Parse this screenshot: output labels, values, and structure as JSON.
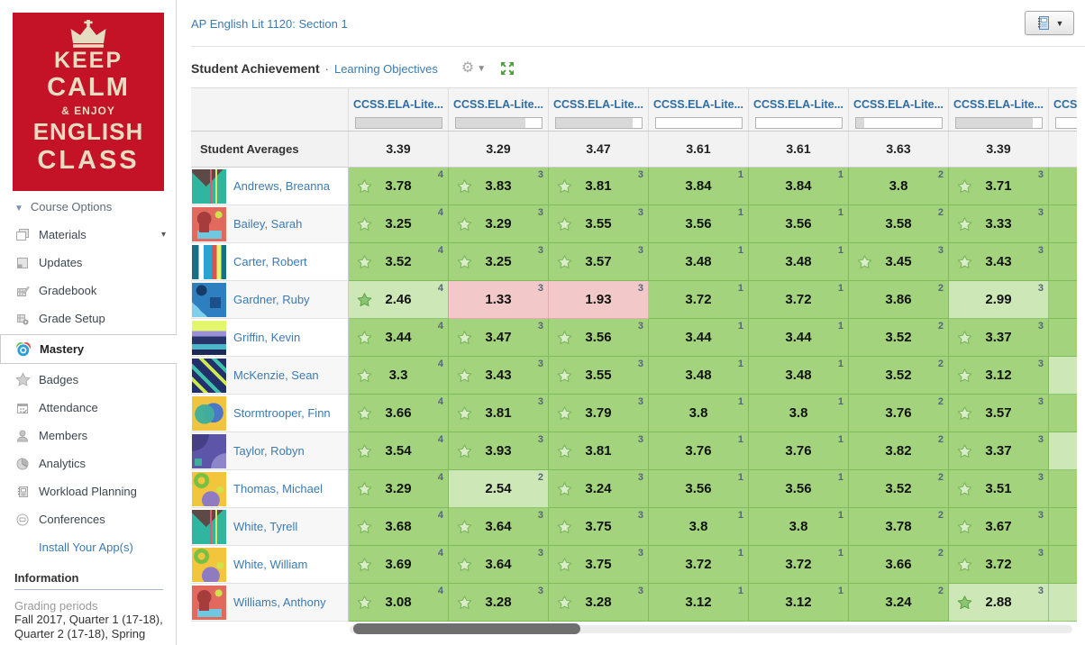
{
  "header": {
    "course_title": "AP English Lit 1120: Section 1",
    "section_title": "Student Achievement",
    "separator": "·",
    "learning_objectives_label": "Learning Objectives"
  },
  "sidebar": {
    "poster_lines": [
      "KEEP",
      "CALM",
      "& ENJOY",
      "ENGLISH",
      "CLASS"
    ],
    "course_options_label": "Course Options",
    "items": [
      {
        "label": "Materials",
        "icon": "materials-icon",
        "caret": true
      },
      {
        "label": "Updates",
        "icon": "updates-icon"
      },
      {
        "label": "Gradebook",
        "icon": "gradebook-icon"
      },
      {
        "label": "Grade Setup",
        "icon": "grade-setup-icon"
      },
      {
        "label": "Mastery",
        "icon": "mastery-icon",
        "active": true
      },
      {
        "label": "Badges",
        "icon": "badges-icon"
      },
      {
        "label": "Attendance",
        "icon": "attendance-icon"
      },
      {
        "label": "Members",
        "icon": "members-icon"
      },
      {
        "label": "Analytics",
        "icon": "analytics-icon"
      },
      {
        "label": "Workload Planning",
        "icon": "workload-planning-icon"
      },
      {
        "label": "Conferences",
        "icon": "conferences-icon"
      }
    ],
    "install_apps_label": "Install Your App(s)",
    "information_heading": "Information",
    "grading_periods_label": "Grading periods",
    "grading_periods_value": "Fall 2017, Quarter 1 (17-18), Quarter 2 (17-18), Spring"
  },
  "table": {
    "averages_label": "Student Averages",
    "columns": [
      {
        "label": "CCSS.ELA-Lite...",
        "progress": 100,
        "average": "3.39"
      },
      {
        "label": "CCSS.ELA-Lite...",
        "progress": 82,
        "average": "3.29"
      },
      {
        "label": "CCSS.ELA-Lite...",
        "progress": 90,
        "average": "3.47"
      },
      {
        "label": "CCSS.ELA-Lite...",
        "progress": 0,
        "average": "3.61"
      },
      {
        "label": "CCSS.ELA-Lite...",
        "progress": 0,
        "average": "3.61"
      },
      {
        "label": "CCSS.ELA-Lite...",
        "progress": 10,
        "average": "3.63"
      },
      {
        "label": "CCSS.ELA-Lite...",
        "progress": 90,
        "average": "3.39"
      },
      {
        "label": "CCSS.ELA-Lite...",
        "progress": 0,
        "average": ""
      }
    ],
    "students": [
      {
        "name": "Andrews, Breanna",
        "avatar": "triangles",
        "cells": [
          {
            "value": "3.78",
            "count": "4",
            "tone": "green",
            "star": "outline"
          },
          {
            "value": "3.83",
            "count": "3",
            "tone": "green",
            "star": "outline"
          },
          {
            "value": "3.81",
            "count": "3",
            "tone": "green",
            "star": "outline"
          },
          {
            "value": "3.84",
            "count": "1",
            "tone": "green",
            "star": "none"
          },
          {
            "value": "3.84",
            "count": "1",
            "tone": "green",
            "star": "none"
          },
          {
            "value": "3.8",
            "count": "2",
            "tone": "green",
            "star": "none"
          },
          {
            "value": "3.71",
            "count": "3",
            "tone": "green",
            "star": "outline"
          },
          {
            "tone": "green"
          }
        ]
      },
      {
        "name": "Bailey, Sarah",
        "avatar": "arches",
        "cells": [
          {
            "value": "3.25",
            "count": "4",
            "tone": "green",
            "star": "outline"
          },
          {
            "value": "3.29",
            "count": "3",
            "tone": "green",
            "star": "outline"
          },
          {
            "value": "3.55",
            "count": "3",
            "tone": "green",
            "star": "outline"
          },
          {
            "value": "3.56",
            "count": "1",
            "tone": "green",
            "star": "none"
          },
          {
            "value": "3.56",
            "count": "1",
            "tone": "green",
            "star": "none"
          },
          {
            "value": "3.58",
            "count": "2",
            "tone": "green",
            "star": "none"
          },
          {
            "value": "3.33",
            "count": "3",
            "tone": "green",
            "star": "outline"
          },
          {
            "tone": "green"
          }
        ]
      },
      {
        "name": "Carter, Robert",
        "avatar": "bars",
        "cells": [
          {
            "value": "3.52",
            "count": "4",
            "tone": "green",
            "star": "outline"
          },
          {
            "value": "3.25",
            "count": "3",
            "tone": "green",
            "star": "outline"
          },
          {
            "value": "3.57",
            "count": "3",
            "tone": "green",
            "star": "outline"
          },
          {
            "value": "3.48",
            "count": "1",
            "tone": "green",
            "star": "none"
          },
          {
            "value": "3.48",
            "count": "1",
            "tone": "green",
            "star": "none"
          },
          {
            "value": "3.45",
            "count": "3",
            "tone": "green",
            "star": "outline"
          },
          {
            "value": "3.43",
            "count": "3",
            "tone": "green",
            "star": "outline"
          },
          {
            "tone": "green"
          }
        ]
      },
      {
        "name": "Gardner, Ruby",
        "avatar": "blues",
        "cells": [
          {
            "value": "2.46",
            "count": "4",
            "tone": "light",
            "star": "filled"
          },
          {
            "value": "1.33",
            "count": "3",
            "tone": "pink",
            "star": "none"
          },
          {
            "value": "1.93",
            "count": "3",
            "tone": "pink",
            "star": "none"
          },
          {
            "value": "3.72",
            "count": "1",
            "tone": "green",
            "star": "none"
          },
          {
            "value": "3.72",
            "count": "1",
            "tone": "green",
            "star": "none"
          },
          {
            "value": "3.86",
            "count": "2",
            "tone": "green",
            "star": "none"
          },
          {
            "value": "2.99",
            "count": "3",
            "tone": "light",
            "star": "none"
          },
          {
            "tone": "green"
          }
        ]
      },
      {
        "name": "Griffin, Kevin",
        "avatar": "waves",
        "cells": [
          {
            "value": "3.44",
            "count": "4",
            "tone": "green",
            "star": "outline"
          },
          {
            "value": "3.47",
            "count": "3",
            "tone": "green",
            "star": "outline"
          },
          {
            "value": "3.56",
            "count": "3",
            "tone": "green",
            "star": "outline"
          },
          {
            "value": "3.44",
            "count": "1",
            "tone": "green",
            "star": "none"
          },
          {
            "value": "3.44",
            "count": "1",
            "tone": "green",
            "star": "none"
          },
          {
            "value": "3.52",
            "count": "2",
            "tone": "green",
            "star": "none"
          },
          {
            "value": "3.37",
            "count": "3",
            "tone": "green",
            "star": "outline"
          },
          {
            "tone": "green"
          }
        ]
      },
      {
        "name": "McKenzie, Sean",
        "avatar": "diagonals",
        "cells": [
          {
            "value": "3.3",
            "count": "4",
            "tone": "green",
            "star": "outline"
          },
          {
            "value": "3.43",
            "count": "3",
            "tone": "green",
            "star": "outline"
          },
          {
            "value": "3.55",
            "count": "3",
            "tone": "green",
            "star": "outline"
          },
          {
            "value": "3.48",
            "count": "1",
            "tone": "green",
            "star": "none"
          },
          {
            "value": "3.48",
            "count": "1",
            "tone": "green",
            "star": "none"
          },
          {
            "value": "3.52",
            "count": "2",
            "tone": "green",
            "star": "none"
          },
          {
            "value": "3.12",
            "count": "3",
            "tone": "green",
            "star": "outline"
          },
          {
            "tone": "light"
          }
        ]
      },
      {
        "name": "Stormtrooper, Finn",
        "avatar": "circles",
        "cells": [
          {
            "value": "3.66",
            "count": "4",
            "tone": "green",
            "star": "outline"
          },
          {
            "value": "3.81",
            "count": "3",
            "tone": "green",
            "star": "outline"
          },
          {
            "value": "3.79",
            "count": "3",
            "tone": "green",
            "star": "outline"
          },
          {
            "value": "3.8",
            "count": "1",
            "tone": "green",
            "star": "none"
          },
          {
            "value": "3.8",
            "count": "1",
            "tone": "green",
            "star": "none"
          },
          {
            "value": "3.76",
            "count": "2",
            "tone": "green",
            "star": "none"
          },
          {
            "value": "3.57",
            "count": "3",
            "tone": "green",
            "star": "outline"
          },
          {
            "tone": "green"
          }
        ]
      },
      {
        "name": "Taylor, Robyn",
        "avatar": "quarters",
        "cells": [
          {
            "value": "3.54",
            "count": "4",
            "tone": "green",
            "star": "outline"
          },
          {
            "value": "3.93",
            "count": "3",
            "tone": "green",
            "star": "outline"
          },
          {
            "value": "3.81",
            "count": "3",
            "tone": "green",
            "star": "outline"
          },
          {
            "value": "3.76",
            "count": "1",
            "tone": "green",
            "star": "none"
          },
          {
            "value": "3.76",
            "count": "1",
            "tone": "green",
            "star": "none"
          },
          {
            "value": "3.82",
            "count": "2",
            "tone": "green",
            "star": "none"
          },
          {
            "value": "3.37",
            "count": "3",
            "tone": "green",
            "star": "outline"
          },
          {
            "tone": "light"
          }
        ]
      },
      {
        "name": "Thomas, Michael",
        "avatar": "squiggles",
        "cells": [
          {
            "value": "3.29",
            "count": "4",
            "tone": "green",
            "star": "outline"
          },
          {
            "value": "2.54",
            "count": "2",
            "tone": "light",
            "star": "none"
          },
          {
            "value": "3.24",
            "count": "3",
            "tone": "green",
            "star": "outline"
          },
          {
            "value": "3.56",
            "count": "1",
            "tone": "green",
            "star": "none"
          },
          {
            "value": "3.56",
            "count": "1",
            "tone": "green",
            "star": "none"
          },
          {
            "value": "3.52",
            "count": "2",
            "tone": "green",
            "star": "none"
          },
          {
            "value": "3.51",
            "count": "3",
            "tone": "green",
            "star": "outline"
          },
          {
            "tone": "green"
          }
        ]
      },
      {
        "name": "White, Tyrell",
        "avatar": "triangles",
        "cells": [
          {
            "value": "3.68",
            "count": "4",
            "tone": "green",
            "star": "outline"
          },
          {
            "value": "3.64",
            "count": "3",
            "tone": "green",
            "star": "outline"
          },
          {
            "value": "3.75",
            "count": "3",
            "tone": "green",
            "star": "outline"
          },
          {
            "value": "3.8",
            "count": "1",
            "tone": "green",
            "star": "none"
          },
          {
            "value": "3.8",
            "count": "1",
            "tone": "green",
            "star": "none"
          },
          {
            "value": "3.78",
            "count": "2",
            "tone": "green",
            "star": "none"
          },
          {
            "value": "3.67",
            "count": "3",
            "tone": "green",
            "star": "outline"
          },
          {
            "tone": "green"
          }
        ]
      },
      {
        "name": "White, William",
        "avatar": "squiggles",
        "cells": [
          {
            "value": "3.69",
            "count": "4",
            "tone": "green",
            "star": "outline"
          },
          {
            "value": "3.64",
            "count": "3",
            "tone": "green",
            "star": "outline"
          },
          {
            "value": "3.75",
            "count": "3",
            "tone": "green",
            "star": "outline"
          },
          {
            "value": "3.72",
            "count": "1",
            "tone": "green",
            "star": "none"
          },
          {
            "value": "3.72",
            "count": "1",
            "tone": "green",
            "star": "none"
          },
          {
            "value": "3.66",
            "count": "2",
            "tone": "green",
            "star": "none"
          },
          {
            "value": "3.72",
            "count": "3",
            "tone": "green",
            "star": "outline"
          },
          {
            "tone": "green"
          }
        ]
      },
      {
        "name": "Williams, Anthony",
        "avatar": "arches",
        "cells": [
          {
            "value": "3.08",
            "count": "4",
            "tone": "green",
            "star": "outline"
          },
          {
            "value": "3.28",
            "count": "3",
            "tone": "green",
            "star": "outline"
          },
          {
            "value": "3.28",
            "count": "3",
            "tone": "green",
            "star": "outline"
          },
          {
            "value": "3.12",
            "count": "1",
            "tone": "green",
            "star": "none"
          },
          {
            "value": "3.12",
            "count": "1",
            "tone": "green",
            "star": "none"
          },
          {
            "value": "3.24",
            "count": "2",
            "tone": "green",
            "star": "none"
          },
          {
            "value": "2.88",
            "count": "3",
            "tone": "light",
            "star": "filled"
          },
          {
            "tone": "light"
          }
        ]
      }
    ]
  },
  "colors": {
    "cell_green": "#a3d47d",
    "cell_light_green": "#cde7b6",
    "cell_pink": "#f2c8c8",
    "star_green": "#7ab55c",
    "link_blue": "#3d7ab0",
    "header_link_blue": "#2e6da4",
    "poster_red": "#c41227"
  }
}
